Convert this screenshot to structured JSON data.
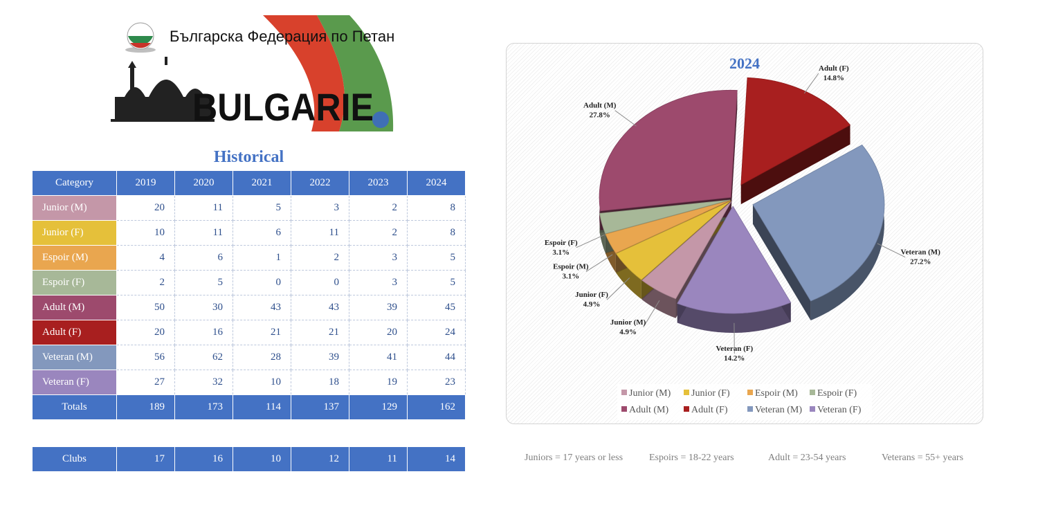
{
  "logo": {
    "federation_text": "Българска Федерация по Петанк",
    "country_text": "BULGARIE",
    "icons": [
      "bulgaria-flag-ball-icon",
      "cathedral-icon",
      "flag-ribbon-icon"
    ]
  },
  "table": {
    "title": "Historical",
    "header": [
      "Category",
      "2019",
      "2020",
      "2021",
      "2022",
      "2023",
      "2024"
    ],
    "rows": [
      {
        "category": "Junior (M)",
        "color": "#c497a8",
        "values": [
          "20",
          "11",
          "5",
          "3",
          "2",
          "8"
        ]
      },
      {
        "category": "Junior (F)",
        "color": "#e5c03a",
        "values": [
          "10",
          "11",
          "6",
          "11",
          "2",
          "8"
        ]
      },
      {
        "category": "Espoir (M)",
        "color": "#e9a64f",
        "values": [
          "4",
          "6",
          "1",
          "2",
          "3",
          "5"
        ]
      },
      {
        "category": "Espoir (F)",
        "color": "#a7b898",
        "values": [
          "2",
          "5",
          "0",
          "0",
          "3",
          "5"
        ]
      },
      {
        "category": "Adult (M)",
        "color": "#9d4a6d",
        "values": [
          "50",
          "30",
          "43",
          "43",
          "39",
          "45"
        ]
      },
      {
        "category": "Adult (F)",
        "color": "#a81f1f",
        "values": [
          "20",
          "16",
          "21",
          "21",
          "20",
          "24"
        ]
      },
      {
        "category": "Veteran (M)",
        "color": "#8398bd",
        "values": [
          "56",
          "62",
          "28",
          "39",
          "41",
          "44"
        ]
      },
      {
        "category": "Veteran (F)",
        "color": "#9a86be",
        "values": [
          "27",
          "32",
          "10",
          "18",
          "19",
          "23"
        ]
      }
    ],
    "totals": {
      "label": "Totals",
      "values": [
        "189",
        "173",
        "114",
        "137",
        "129",
        "162"
      ]
    },
    "clubs": {
      "label": "Clubs",
      "values": [
        "17",
        "16",
        "10",
        "12",
        "11",
        "14"
      ]
    }
  },
  "chart_data": {
    "type": "pie",
    "title": "2024",
    "legend_position": "bottom",
    "categories": [
      "Junior (M)",
      "Junior (F)",
      "Espoir (M)",
      "Espoir (F)",
      "Adult (M)",
      "Adult (F)",
      "Veteran (M)",
      "Veteran (F)"
    ],
    "values": [
      8,
      8,
      5,
      5,
      45,
      24,
      44,
      23
    ],
    "labels": [
      "4.9%",
      "4.9%",
      "3.1%",
      "3.1%",
      "27.8%",
      "14.8%",
      "27.2%",
      "14.2%"
    ],
    "colors": [
      "#c497a8",
      "#e5c03a",
      "#e9a64f",
      "#a7b898",
      "#9d4a6d",
      "#a81f1f",
      "#8398bd",
      "#9a86be"
    ]
  },
  "footnotes": [
    "Juniors = 17 years or less",
    "Espoirs = 18-22 years",
    "Adult = 23-54 years",
    "Veterans = 55+ years"
  ]
}
